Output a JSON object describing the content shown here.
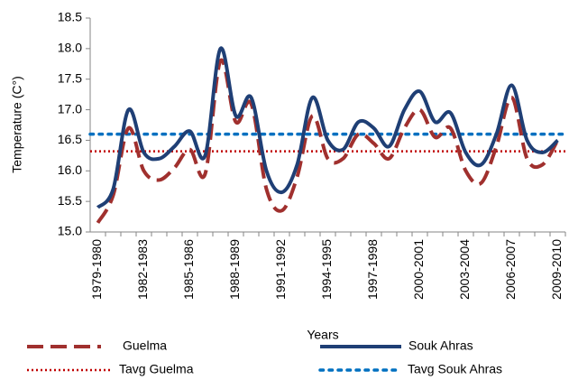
{
  "chart_data": {
    "type": "line",
    "x_label": "Years",
    "y_label": "Temperature (C°)",
    "categories": [
      "1979-1980",
      null,
      null,
      "1982-1983",
      null,
      null,
      "1985-1986",
      null,
      null,
      "1988-1989",
      null,
      null,
      "1991-1992",
      null,
      null,
      "1994-1995",
      null,
      null,
      "1997-1998",
      null,
      null,
      "2000-2001",
      null,
      null,
      "2003-2004",
      null,
      null,
      "2006-2007",
      null,
      null,
      "2009-2010"
    ],
    "series": [
      {
        "name": "Guelma",
        "color": "#a0302e",
        "style": "dashed",
        "values": [
          15.15,
          15.6,
          16.7,
          16.0,
          15.85,
          16.05,
          16.35,
          15.95,
          17.8,
          16.8,
          17.1,
          15.7,
          15.35,
          15.9,
          16.9,
          16.2,
          16.2,
          16.6,
          16.45,
          16.2,
          16.7,
          17.0,
          16.55,
          16.7,
          16.0,
          15.8,
          16.4,
          17.2,
          16.2,
          16.1,
          16.5
        ]
      },
      {
        "name": "Souk Ahras",
        "color": "#1f3f75",
        "style": "solid",
        "values": [
          15.4,
          15.7,
          17.0,
          16.3,
          16.2,
          16.4,
          16.65,
          16.25,
          18.0,
          16.9,
          17.2,
          16.0,
          15.65,
          16.1,
          17.2,
          16.5,
          16.35,
          16.8,
          16.7,
          16.4,
          17.0,
          17.3,
          16.8,
          16.95,
          16.3,
          16.1,
          16.6,
          17.4,
          16.5,
          16.3,
          16.5
        ]
      }
    ],
    "reference_lines": [
      {
        "name": "Tavg Guelma",
        "color": "#c00000",
        "value": 16.32
      },
      {
        "name": "Tavg Souk Ahras",
        "color": "#0070c0",
        "value": 16.6
      }
    ],
    "ylim": [
      15.0,
      18.5
    ],
    "yticks": [
      {
        "value": 15.0,
        "label": "15.0"
      },
      {
        "value": 15.5,
        "label": "15.5"
      },
      {
        "value": 16.0,
        "label": "16.0"
      },
      {
        "value": 16.5,
        "label": "16.5"
      },
      {
        "value": 17.0,
        "label": "17.0"
      },
      {
        "value": 17.5,
        "label": "17.5"
      },
      {
        "value": 18.0,
        "label": "18.0"
      },
      {
        "value": 18.5,
        "label": "18.5"
      }
    ],
    "grid": false,
    "legend": "bottom"
  }
}
